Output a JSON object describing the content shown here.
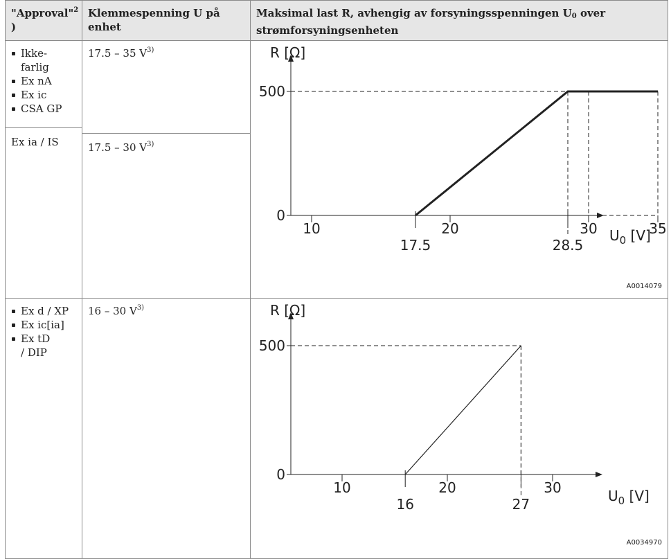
{
  "table": {
    "headers": {
      "approval": "\"Approval\"",
      "approval_sup": "2",
      "approval_tail": ")",
      "voltage": "Klemmespenning U på enhet",
      "load_pre": "Maksimal last R, avhengig av forsyningsspenningen U",
      "load_sub": "0",
      "load_post": " over strømforsyningsenheten"
    },
    "rows": [
      {
        "approvals": [
          "Ikke-farlig",
          "Ex nA",
          "Ex ic",
          "CSA GP"
        ],
        "voltage": "17.5 – 35 V",
        "voltage_sup": "3)"
      },
      {
        "approval_text": "Ex ia / IS",
        "voltage": "17.5 – 30 V",
        "voltage_sup": "3)"
      },
      {
        "approvals": [
          "Ex d / XP",
          "Ex ic[ia]",
          "Ex tD / DIP"
        ],
        "voltage": "16 – 30 V",
        "voltage_sup": "3)"
      }
    ]
  },
  "chart_data": [
    {
      "type": "line",
      "ylabel": "R [Ω]",
      "xlabel": "U",
      "xlabel_sub": "0",
      "xlabel_unit": " [V]",
      "x_ticks_top": [
        "10",
        "20",
        "30",
        "35"
      ],
      "x_ticks_bottom": [
        "17.5",
        "28.5"
      ],
      "y_ticks": [
        "0",
        "500"
      ],
      "series": [
        {
          "x": [
            17.5,
            28.5,
            35
          ],
          "y": [
            0,
            500,
            500
          ]
        }
      ],
      "ref_code": "A0014079"
    },
    {
      "type": "line",
      "ylabel": "R [Ω]",
      "xlabel": "U",
      "xlabel_sub": "0",
      "xlabel_unit": " [V]",
      "x_ticks_top": [
        "10",
        "20",
        "30"
      ],
      "x_ticks_bottom": [
        "16",
        "27"
      ],
      "y_ticks": [
        "0",
        "500"
      ],
      "series": [
        {
          "x": [
            16,
            27
          ],
          "y": [
            0,
            500
          ]
        }
      ],
      "ref_code": "A0034970"
    }
  ]
}
